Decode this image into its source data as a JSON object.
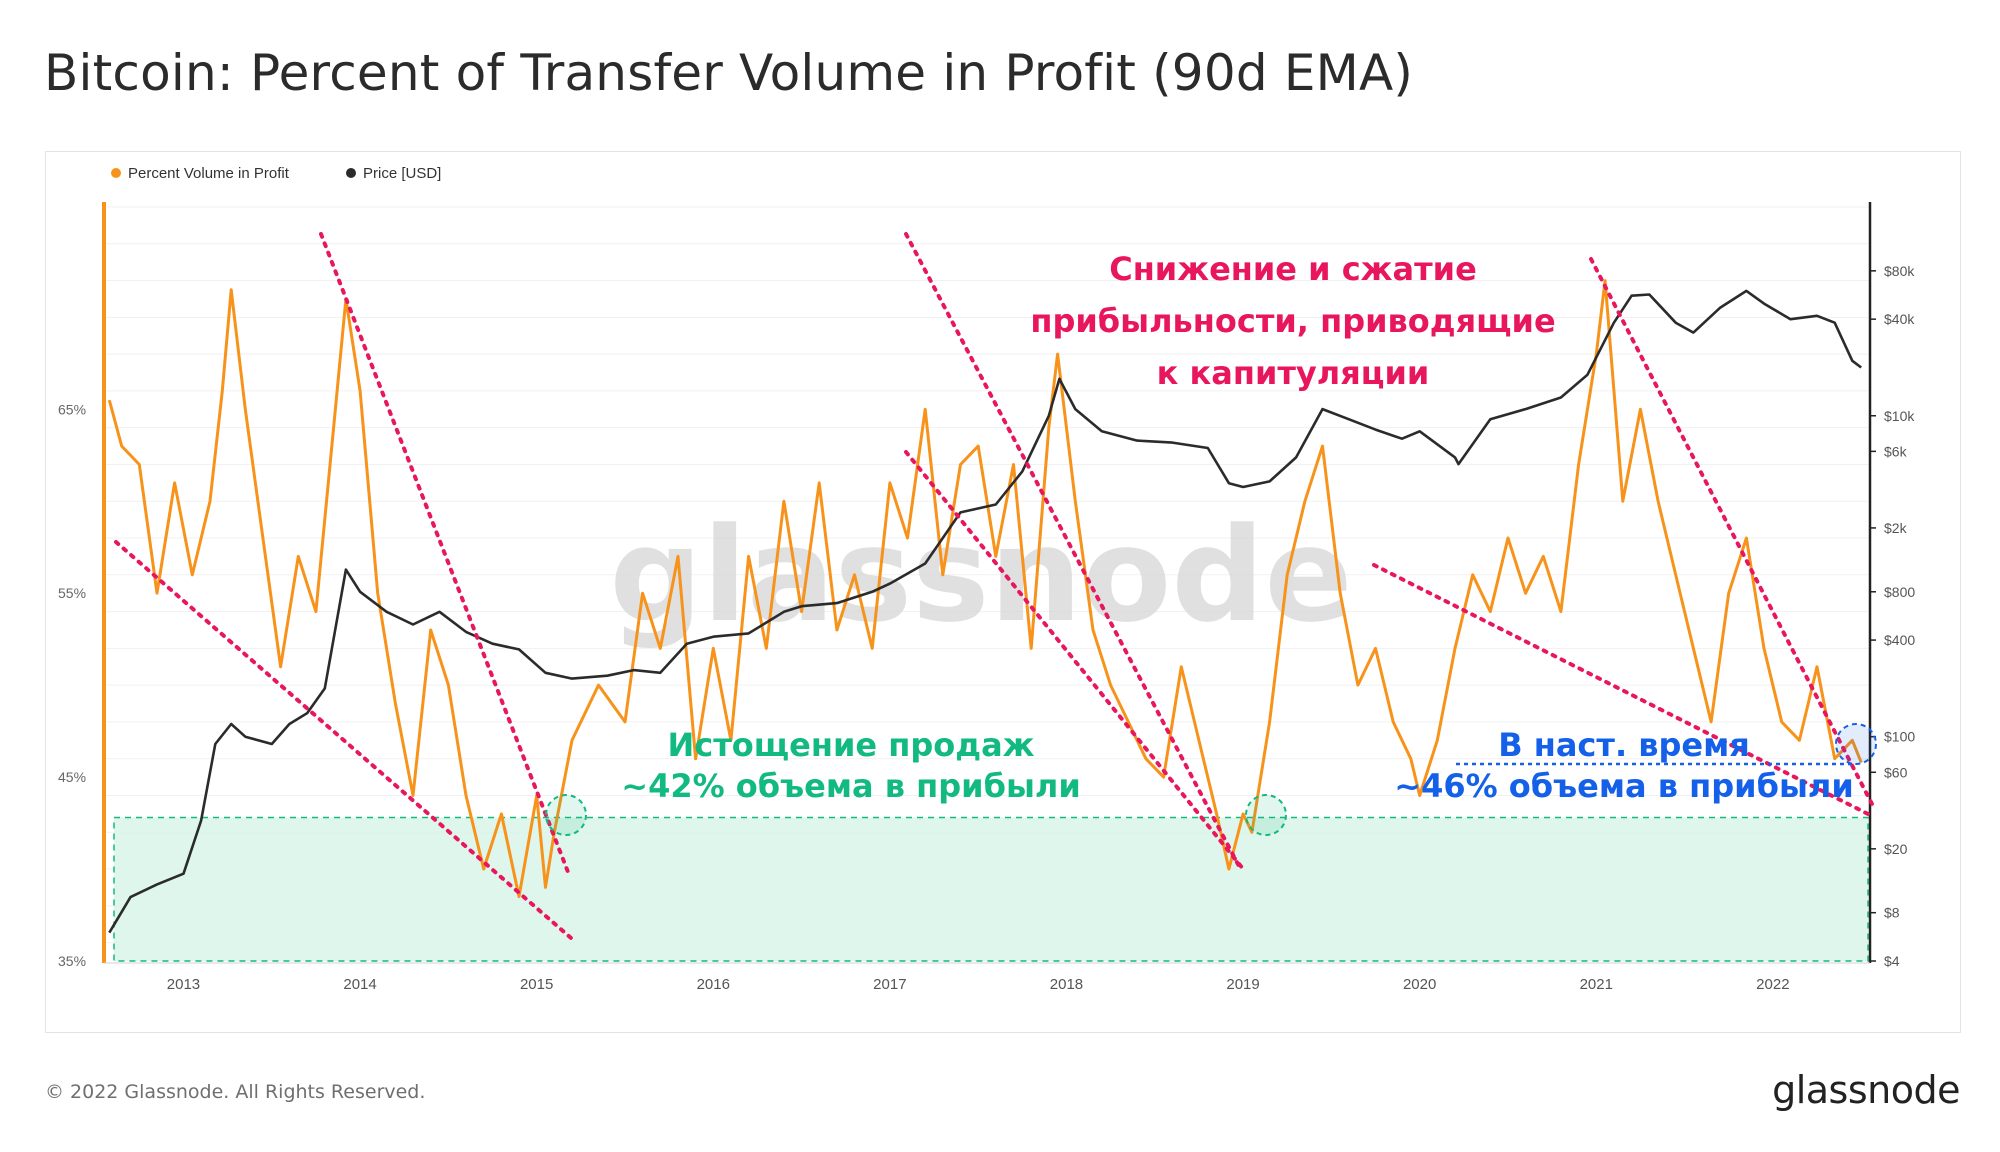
{
  "page_title": "Bitcoin: Percent of Transfer Volume in Profit (90d EMA)",
  "footer": {
    "copyright": "© 2022 Glassnode. All Rights Reserved.",
    "logo": "glassnode"
  },
  "watermark": "glassnode",
  "colors": {
    "profit_series": "#f7931a",
    "price_series": "#2b2b2b",
    "annotation_red": "#e8175d",
    "annotation_green": "#12b981",
    "annotation_blue": "#1560e8",
    "zone_fill": "#d8f5e8"
  },
  "annotations": {
    "red_line1": "Снижение и сжатие",
    "red_line2": "прибыльности, приводящие",
    "red_line3": "к капитуляции",
    "green_line1": "Истощение продаж",
    "green_line2": "~42% объема в прибыли",
    "blue_line1": "В наст. время",
    "blue_line2": "~46% объема в прибыли"
  },
  "chart_data": {
    "type": "line",
    "title": "Bitcoin: Percent of Transfer Volume in Profit (90d EMA)",
    "legend_position": "top-left",
    "x_tick_labels": [
      "2013",
      "2014",
      "2015",
      "2016",
      "2017",
      "2018",
      "2019",
      "2020",
      "2021",
      "2022"
    ],
    "x_range": [
      2012.55,
      2022.55
    ],
    "y_left": {
      "tick_labels": [
        "35%",
        "45%",
        "55%",
        "65%"
      ],
      "tick_values": [
        35,
        45,
        55,
        65
      ],
      "range": [
        35,
        76
      ]
    },
    "y_right": {
      "scale": "log",
      "tick_labels": [
        "$4",
        "$8",
        "$20",
        "$60",
        "$100",
        "$400",
        "$800",
        "$2k",
        "$6k",
        "$10k",
        "$40k",
        "$80k"
      ],
      "tick_values": [
        4,
        8,
        20,
        60,
        100,
        400,
        800,
        2000,
        6000,
        10000,
        40000,
        80000
      ],
      "range": [
        4,
        200000
      ]
    },
    "grid": true,
    "capitulation_zone": {
      "y_from": 35,
      "y_to": 42.8
    },
    "series": [
      {
        "name": "Percent Volume in Profit",
        "axis": "left",
        "x": [
          2012.58,
          2012.65,
          2012.75,
          2012.85,
          2012.95,
          2013.05,
          2013.15,
          2013.22,
          2013.27,
          2013.35,
          2013.45,
          2013.55,
          2013.65,
          2013.75,
          2013.85,
          2013.92,
          2014.0,
          2014.1,
          2014.2,
          2014.3,
          2014.4,
          2014.5,
          2014.6,
          2014.7,
          2014.8,
          2014.9,
          2015.0,
          2015.05,
          2015.1,
          2015.2,
          2015.35,
          2015.5,
          2015.6,
          2015.7,
          2015.8,
          2015.9,
          2016.0,
          2016.1,
          2016.2,
          2016.3,
          2016.4,
          2016.5,
          2016.6,
          2016.7,
          2016.8,
          2016.9,
          2017.0,
          2017.1,
          2017.2,
          2017.3,
          2017.4,
          2017.5,
          2017.6,
          2017.7,
          2017.8,
          2017.9,
          2017.95,
          2018.05,
          2018.15,
          2018.25,
          2018.35,
          2018.45,
          2018.55,
          2018.65,
          2018.75,
          2018.85,
          2018.92,
          2019.0,
          2019.05,
          2019.15,
          2019.25,
          2019.35,
          2019.45,
          2019.55,
          2019.65,
          2019.75,
          2019.85,
          2019.95,
          2020.0,
          2020.1,
          2020.2,
          2020.3,
          2020.4,
          2020.5,
          2020.6,
          2020.7,
          2020.8,
          2020.9,
          2021.0,
          2021.05,
          2021.15,
          2021.25,
          2021.35,
          2021.45,
          2021.55,
          2021.65,
          2021.75,
          2021.85,
          2021.95,
          2022.05,
          2022.15,
          2022.25,
          2022.35,
          2022.45,
          2022.5
        ],
        "y": [
          65.5,
          63,
          62,
          55,
          61,
          56,
          60,
          66,
          71.5,
          65,
          58,
          51,
          57,
          54,
          64,
          71,
          66,
          55,
          49,
          44,
          53,
          50,
          44,
          40,
          43,
          38.5,
          44,
          39,
          42,
          47,
          50,
          48,
          55,
          52,
          57,
          46,
          52,
          47,
          57,
          52,
          60,
          54,
          61,
          53,
          56,
          52,
          61,
          58,
          65,
          56,
          62,
          63,
          57,
          62,
          52,
          64,
          68,
          60,
          53,
          50,
          48,
          46,
          45,
          51,
          47,
          43,
          40,
          43,
          42,
          48,
          56,
          60,
          63,
          55,
          50,
          52,
          48,
          46,
          44,
          47,
          52,
          56,
          54,
          58,
          55,
          57,
          54,
          62,
          68,
          72,
          60,
          65,
          60,
          56,
          52,
          48,
          55,
          58,
          52,
          48,
          47,
          51,
          46,
          47,
          45.8
        ]
      },
      {
        "name": "Price [USD]",
        "axis": "right",
        "x": [
          2012.58,
          2012.7,
          2012.85,
          2013.0,
          2013.1,
          2013.18,
          2013.27,
          2013.35,
          2013.5,
          2013.6,
          2013.7,
          2013.8,
          2013.92,
          2014.0,
          2014.15,
          2014.3,
          2014.45,
          2014.6,
          2014.75,
          2014.9,
          2015.05,
          2015.2,
          2015.4,
          2015.55,
          2015.7,
          2015.85,
          2016.0,
          2016.2,
          2016.4,
          2016.5,
          2016.7,
          2016.9,
          2017.0,
          2017.2,
          2017.4,
          2017.6,
          2017.75,
          2017.9,
          2017.96,
          2018.05,
          2018.2,
          2018.4,
          2018.6,
          2018.8,
          2018.92,
          2019.0,
          2019.15,
          2019.3,
          2019.45,
          2019.6,
          2019.75,
          2019.9,
          2020.0,
          2020.2,
          2020.22,
          2020.4,
          2020.6,
          2020.8,
          2020.95,
          2021.1,
          2021.2,
          2021.3,
          2021.45,
          2021.55,
          2021.7,
          2021.85,
          2021.95,
          2022.1,
          2022.25,
          2022.35,
          2022.45,
          2022.5
        ],
        "y": [
          6,
          10,
          12,
          14,
          30,
          90,
          120,
          100,
          90,
          120,
          140,
          200,
          1100,
          800,
          600,
          500,
          600,
          450,
          380,
          350,
          250,
          230,
          240,
          260,
          250,
          380,
          420,
          440,
          600,
          650,
          680,
          800,
          900,
          1200,
          2500,
          2800,
          4500,
          10000,
          17000,
          11000,
          8000,
          7000,
          6800,
          6300,
          3800,
          3600,
          3900,
          5500,
          11000,
          9500,
          8200,
          7200,
          8000,
          5500,
          5000,
          9500,
          11000,
          13000,
          18000,
          38000,
          56000,
          57000,
          38000,
          33000,
          47000,
          60000,
          50000,
          40000,
          42000,
          38000,
          22000,
          20000
        ]
      }
    ]
  }
}
